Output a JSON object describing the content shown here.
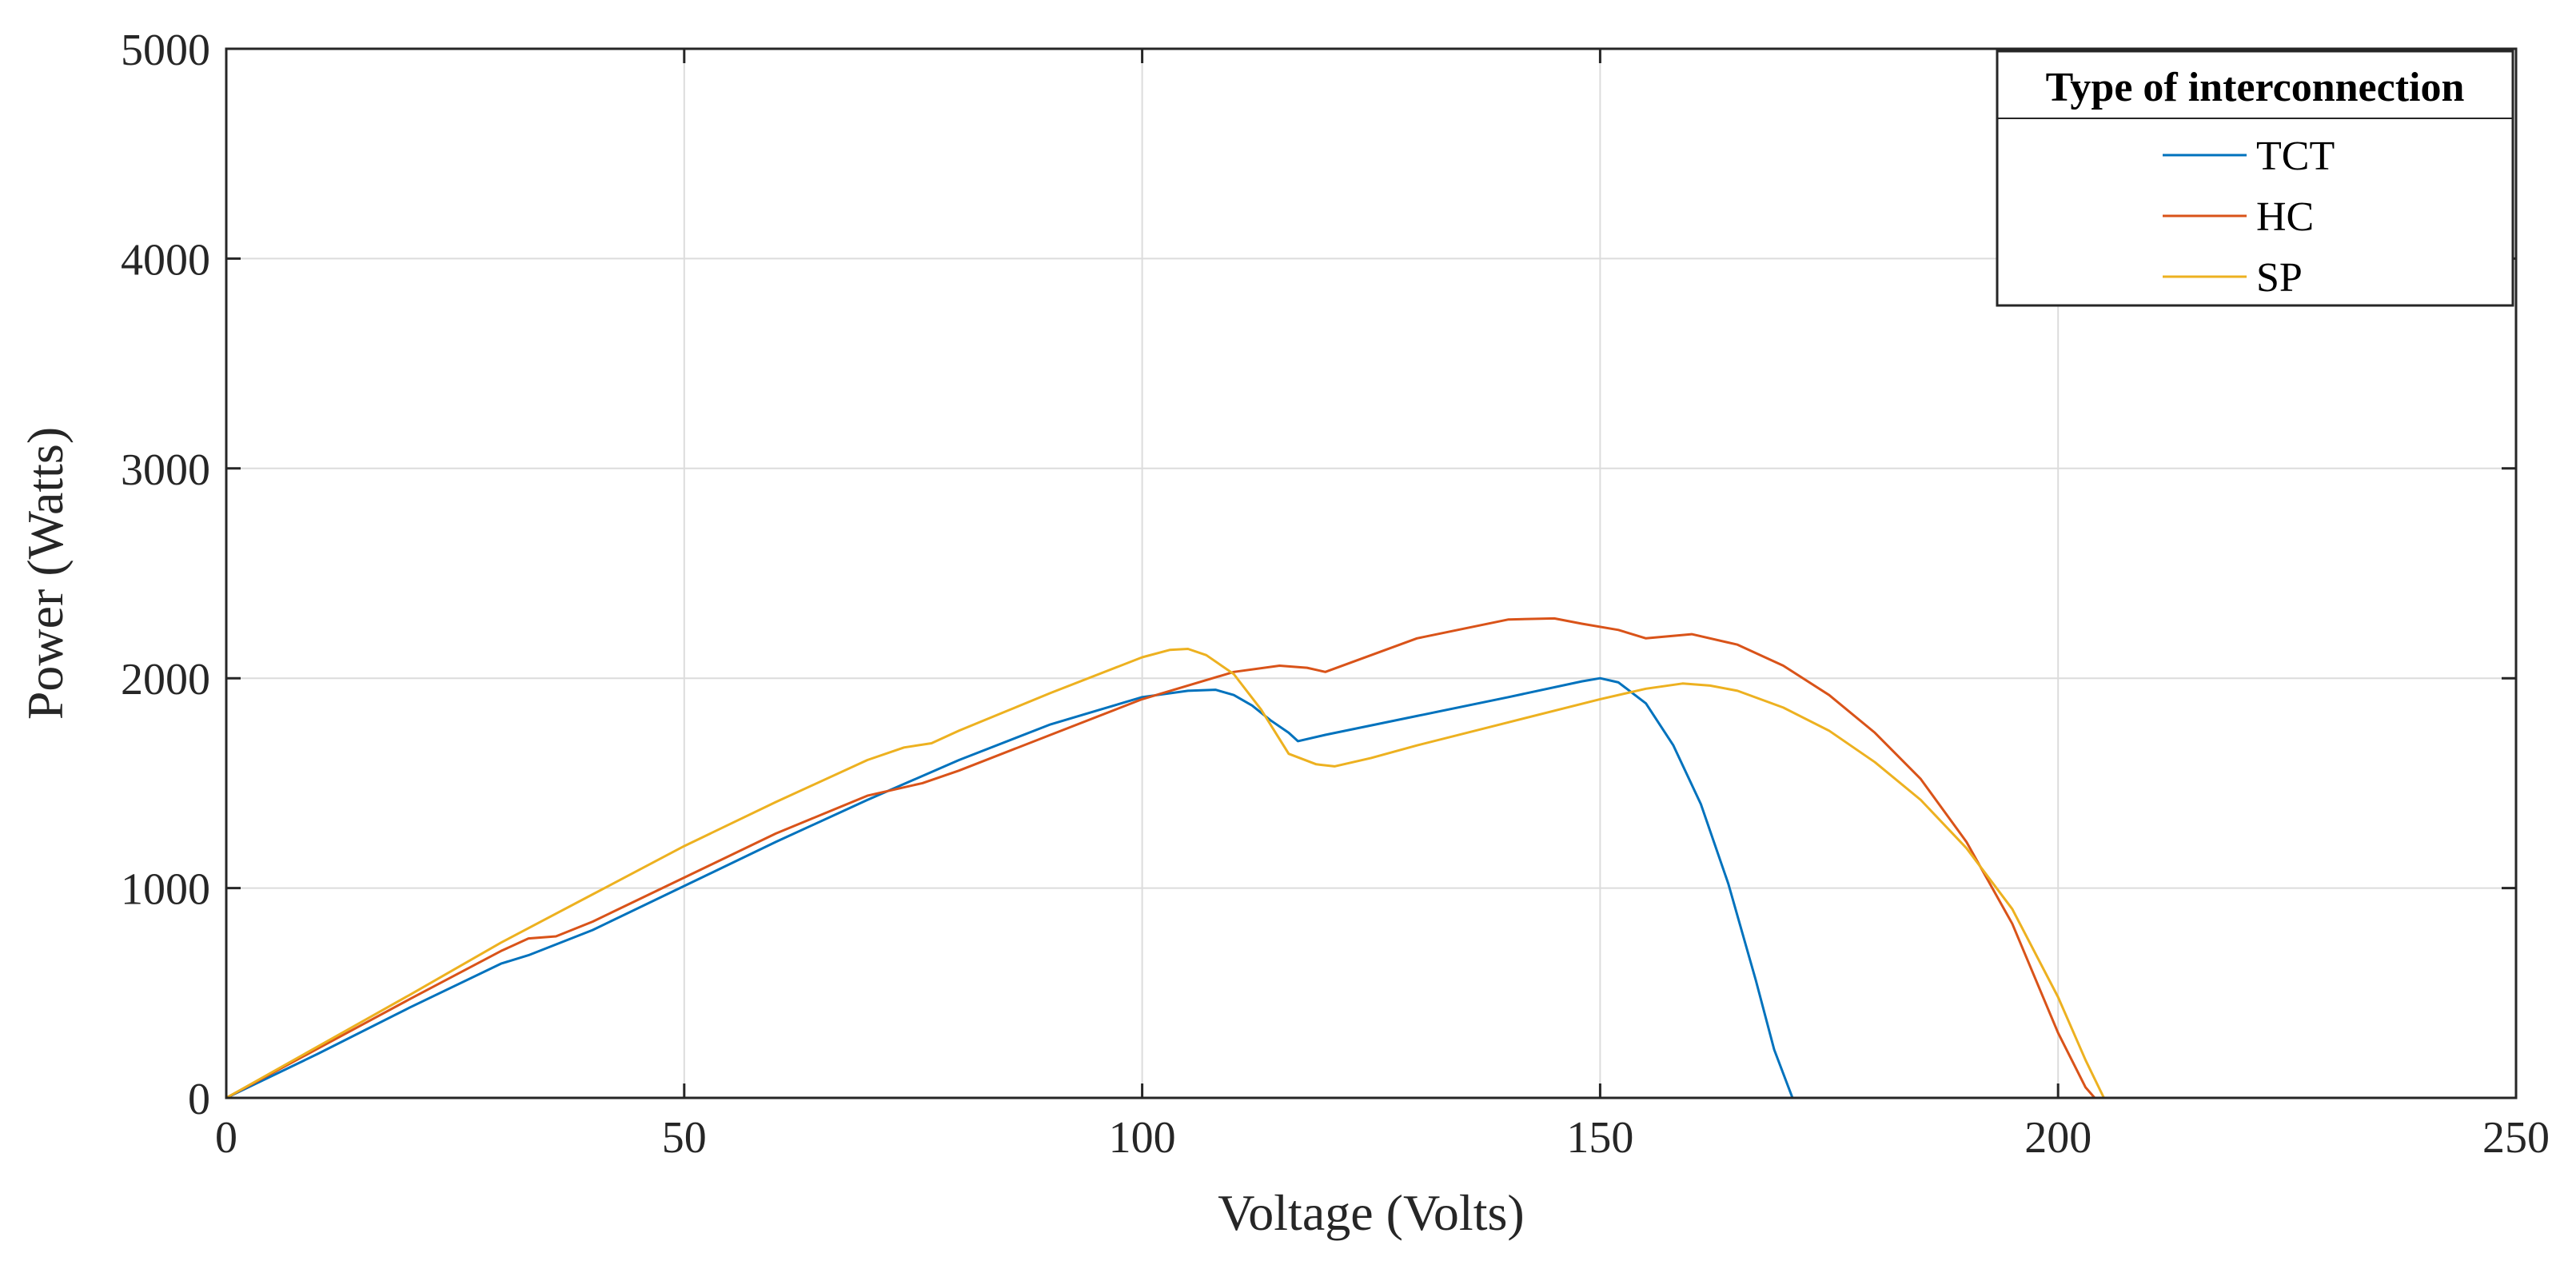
{
  "chart_data": {
    "type": "line",
    "xlabel": "Voltage (Volts)",
    "ylabel": "Power (Watts)",
    "xlim": [
      0,
      250
    ],
    "ylim": [
      0,
      5000
    ],
    "xticks": [
      0,
      50,
      100,
      150,
      200,
      250
    ],
    "yticks": [
      0,
      1000,
      2000,
      3000,
      4000,
      5000
    ],
    "grid": true,
    "legend": {
      "title": "Type of interconnection",
      "placement": "top-right"
    },
    "series": [
      {
        "name": "TCT",
        "color": "#0072BD",
        "x": [
          0,
          10,
          20,
          30,
          33,
          40,
          50,
          60,
          70,
          80,
          90,
          100,
          105,
          108,
          110,
          112,
          114,
          116,
          117,
          120,
          130,
          140,
          148,
          150,
          152,
          155,
          158,
          161,
          164,
          167,
          169,
          171
        ],
        "y": [
          0,
          210,
          430,
          640,
          680,
          800,
          1010,
          1220,
          1420,
          1610,
          1780,
          1910,
          1940,
          1945,
          1920,
          1870,
          1800,
          1740,
          1700,
          1730,
          1820,
          1910,
          1985,
          2000,
          1980,
          1880,
          1680,
          1400,
          1020,
          560,
          230,
          0
        ]
      },
      {
        "name": "HC",
        "color": "#D95319",
        "x": [
          0,
          10,
          20,
          30,
          33,
          36,
          40,
          50,
          60,
          70,
          76,
          80,
          90,
          100,
          110,
          115,
          118,
          120,
          125,
          130,
          140,
          145,
          148,
          152,
          155,
          160,
          165,
          170,
          175,
          180,
          185,
          190,
          195,
          200,
          203,
          204
        ],
        "y": [
          0,
          235,
          470,
          700,
          760,
          770,
          840,
          1050,
          1260,
          1440,
          1500,
          1560,
          1730,
          1900,
          2030,
          2060,
          2050,
          2030,
          2110,
          2190,
          2280,
          2285,
          2260,
          2230,
          2190,
          2210,
          2160,
          2060,
          1920,
          1740,
          1520,
          1220,
          830,
          310,
          50,
          0
        ]
      },
      {
        "name": "SP",
        "color": "#EDB120",
        "x": [
          0,
          10,
          20,
          30,
          40,
          50,
          60,
          70,
          74,
          77,
          80,
          90,
          100,
          103,
          105,
          107,
          110,
          113,
          116,
          119,
          121,
          125,
          130,
          140,
          150,
          155,
          159,
          162,
          165,
          170,
          175,
          180,
          185,
          190,
          195,
          200,
          203,
          205
        ],
        "y": [
          0,
          245,
          490,
          740,
          970,
          1200,
          1410,
          1610,
          1670,
          1690,
          1750,
          1930,
          2100,
          2135,
          2140,
          2110,
          2020,
          1850,
          1640,
          1590,
          1580,
          1620,
          1680,
          1790,
          1900,
          1950,
          1975,
          1965,
          1940,
          1860,
          1750,
          1600,
          1420,
          1190,
          900,
          480,
          180,
          0
        ]
      }
    ]
  }
}
